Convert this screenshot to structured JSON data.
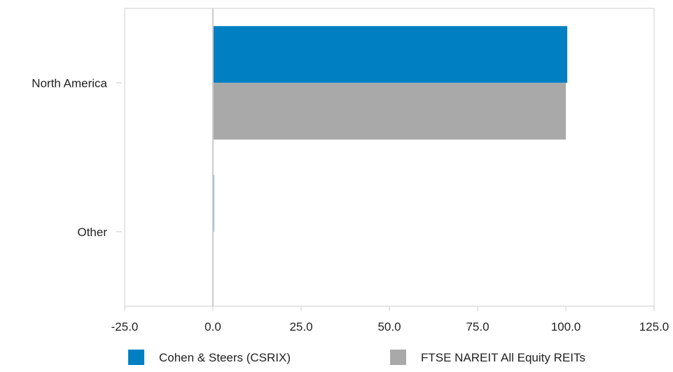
{
  "chart_data": {
    "type": "bar",
    "orientation": "horizontal",
    "categories": [
      "North America",
      "Other"
    ],
    "series": [
      {
        "name": "Cohen & Steers (CSRIX)",
        "color": "#0080c3",
        "values": [
          100.4,
          0.2
        ]
      },
      {
        "name": "FTSE NAREIT All Equity REITs",
        "color": "#a9a9a9",
        "values": [
          100.0,
          0.0
        ]
      }
    ],
    "xlim": [
      -25,
      125
    ],
    "xticks": [
      -25,
      0,
      25,
      50,
      75,
      100,
      125
    ],
    "xtick_labels": [
      "-25.0",
      "0.0",
      "25.0",
      "50.0",
      "75.0",
      "100.0",
      "125.0"
    ],
    "title": "",
    "xlabel": "",
    "ylabel": "",
    "grid": false,
    "legend_position": "bottom"
  }
}
